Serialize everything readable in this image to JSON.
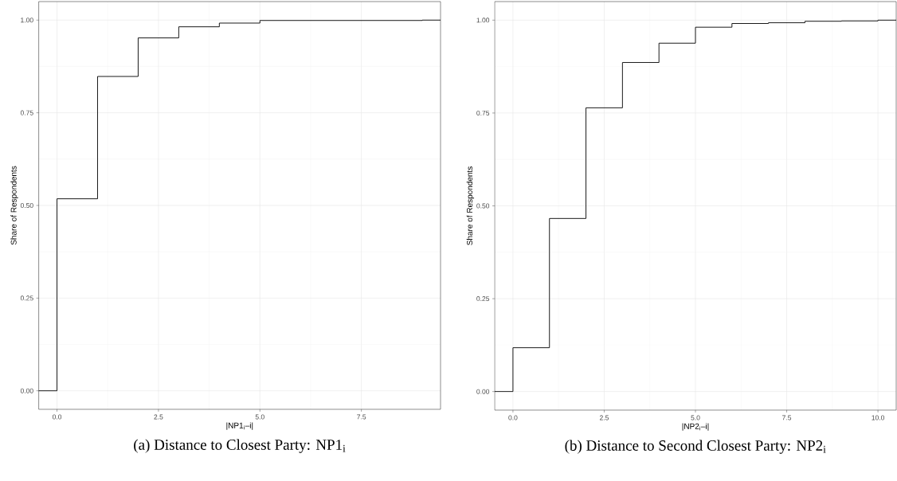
{
  "chart_data": [
    {
      "type": "step",
      "title": "(a) Distance to Closest Party: NP1$_{i}$",
      "xlabel": "|NP1$_{i}$–i|",
      "ylabel": "Share of Respondents",
      "xlim": [
        -0.45,
        9.45
      ],
      "ylim": [
        -0.05,
        1.05
      ],
      "xticks": [
        {
          "value": 0,
          "label": "0.0"
        },
        {
          "value": 2.5,
          "label": "2.5"
        },
        {
          "value": 5,
          "label": "5.0"
        },
        {
          "value": 7.5,
          "label": "7.5"
        }
      ],
      "yticks": [
        {
          "value": 0,
          "label": "0.00"
        },
        {
          "value": 0.25,
          "label": "0.25"
        },
        {
          "value": 0.5,
          "label": "0.50"
        },
        {
          "value": 0.75,
          "label": "0.75"
        },
        {
          "value": 1,
          "label": "1.00"
        }
      ],
      "grid": true,
      "series": [
        {
          "color": "#000000",
          "x": [
            -0.45,
            0,
            1,
            2,
            3,
            4,
            5,
            9,
            9.45
          ],
          "values": [
            0,
            0.518,
            0.848,
            0.952,
            0.982,
            0.992,
            0.999,
            1,
            1
          ]
        }
      ]
    },
    {
      "type": "step",
      "title": "(b) Distance to Second Closest Party: NP2$_{i}$",
      "xlabel": "|NP2$_{i}$–i|",
      "ylabel": "Share of Respondents",
      "xlim": [
        -0.5,
        10.5
      ],
      "ylim": [
        -0.05,
        1.05
      ],
      "xticks": [
        {
          "value": 0,
          "label": "0.0"
        },
        {
          "value": 2.5,
          "label": "2.5"
        },
        {
          "value": 5,
          "label": "5.0"
        },
        {
          "value": 7.5,
          "label": "7.5"
        },
        {
          "value": 10,
          "label": "10.0"
        }
      ],
      "yticks": [
        {
          "value": 0,
          "label": "0.00"
        },
        {
          "value": 0.25,
          "label": "0.25"
        },
        {
          "value": 0.5,
          "label": "0.50"
        },
        {
          "value": 0.75,
          "label": "0.75"
        },
        {
          "value": 1,
          "label": "1.00"
        }
      ],
      "grid": true,
      "series": [
        {
          "color": "#000000",
          "x": [
            -0.5,
            0,
            1,
            2,
            3,
            4,
            5,
            6,
            7,
            8,
            9,
            10,
            10.5
          ],
          "values": [
            0,
            0.118,
            0.466,
            0.764,
            0.886,
            0.938,
            0.981,
            0.991,
            0.993,
            0.997,
            0.998,
            1,
            1
          ]
        }
      ]
    }
  ]
}
